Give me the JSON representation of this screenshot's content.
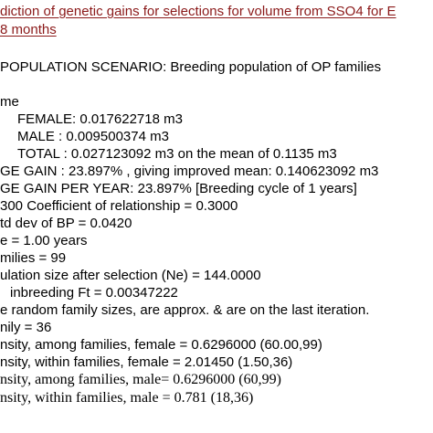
{
  "document": {
    "title_line_1": "diction of genetic gains for selections for volume from SSO4 for E",
    "title_line_2": "8 months",
    "scenario": "POPULATION SCENARIO:  Breeding population of OP families",
    "lines": [
      "me",
      "FEMALE: 0.017622718 m3",
      "MALE  : 0.009500374 m3",
      "TOTAL : 0.027123092 m3 on the mean of 0.1135 m3",
      "GE GAIN : 23.897% , giving improved mean: 0.140623092 m3",
      "GE GAIN PER YEAR: 23.897% [Breeding cycle of 1 years]",
      "300  Coefficient of relationship = 0.3000",
      "td dev of BP = 0.0420",
      "e = 1.00 years",
      "milies = 99",
      "ulation size after selection (Ne) = 144.0000",
      "inbreeding Ft = 0.00347222",
      "e random family sizes, are approx. & are on the last iteration.",
      "nily = 36",
      "nsity, among families, female = 0.6296000 (60.00,99)",
      "nsity, within families, female = 2.01450 (1.50,36)",
      "nsity, among families, male= 0.6296000 (60,99)",
      "nsity, within families, male = 0.781 (18,36)"
    ]
  },
  "colors": {
    "title": "#8b1a1a",
    "text": "#000000",
    "background": "#ffffff"
  }
}
